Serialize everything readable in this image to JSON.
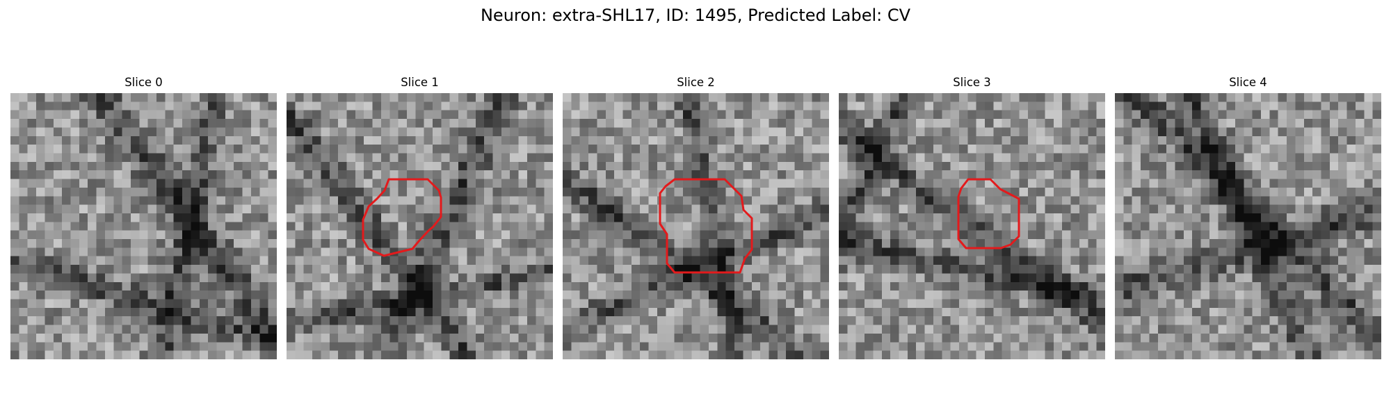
{
  "figure": {
    "title": "Neuron: extra-SHL17, ID: 1495, Predicted Label: CV",
    "contour_color": "#e31a1c"
  },
  "panels": [
    {
      "title": "Slice 0",
      "has_contour": false,
      "image_description": "grayscale pixelated microscopy patch"
    },
    {
      "title": "Slice 1",
      "has_contour": true,
      "image_description": "grayscale pixelated microscopy patch with red outline around a roughly circular region"
    },
    {
      "title": "Slice 2",
      "has_contour": true,
      "image_description": "grayscale pixelated microscopy patch with red outline around a roughly circular region"
    },
    {
      "title": "Slice 3",
      "has_contour": true,
      "image_description": "grayscale pixelated microscopy patch with red outline around a roughly circular region"
    },
    {
      "title": "Slice 4",
      "has_contour": false,
      "image_description": "grayscale pixelated microscopy patch"
    }
  ]
}
